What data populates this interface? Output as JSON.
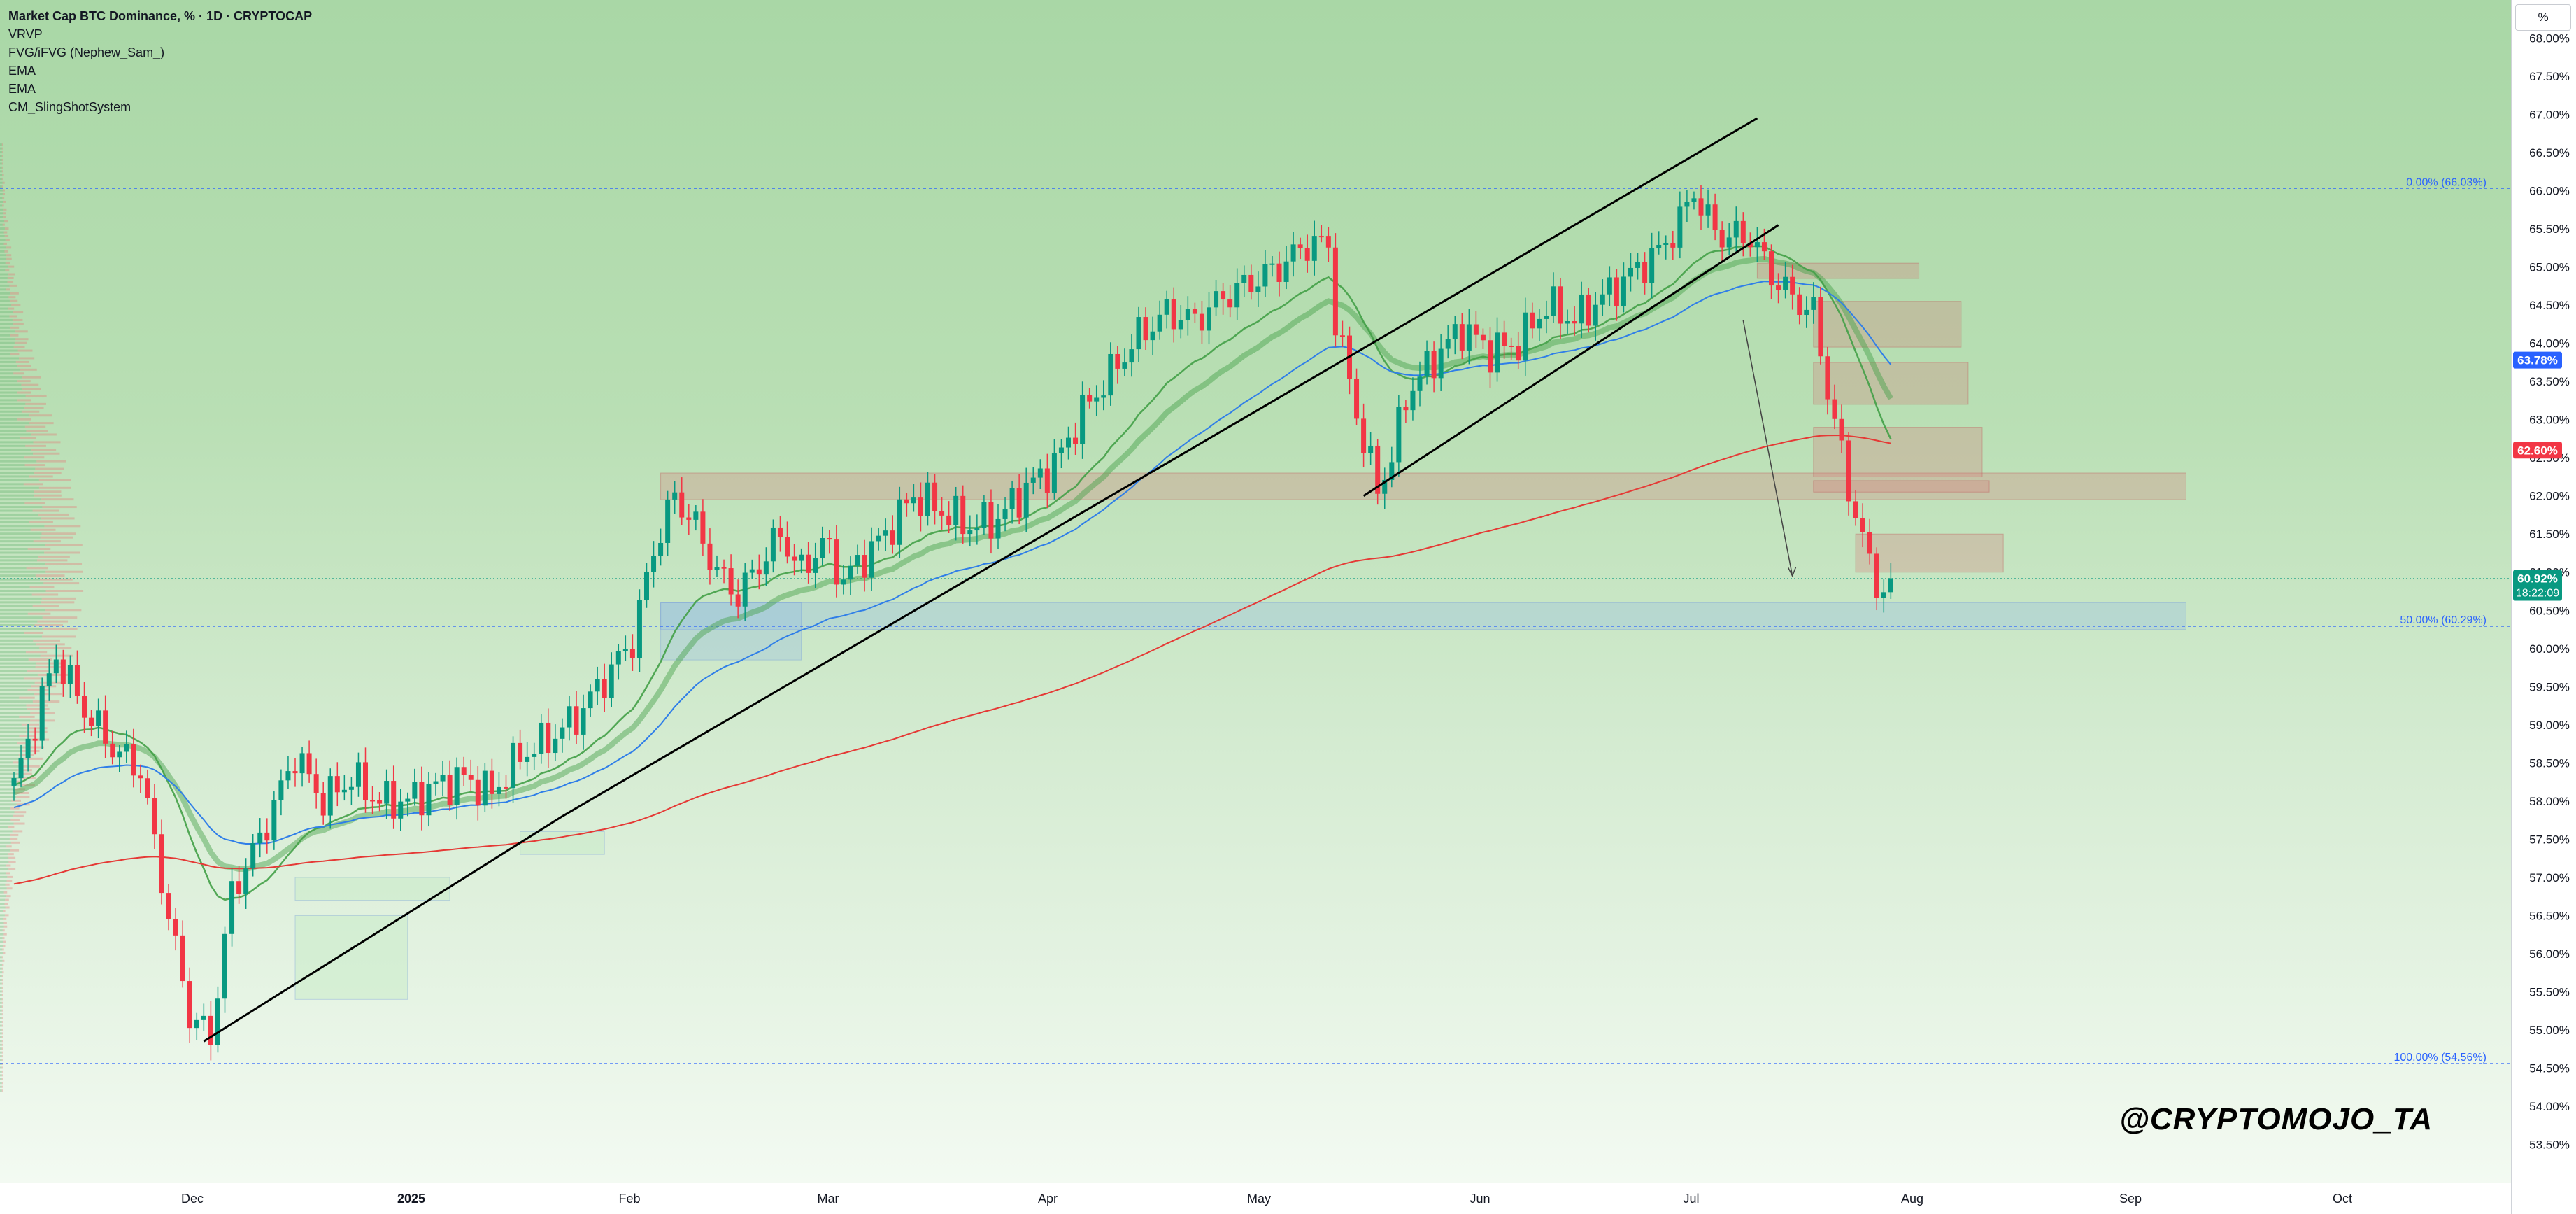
{
  "legend": {
    "title": "Market Cap BTC Dominance, % · 1D · CRYPTOCAP",
    "indicators": [
      "VRVP",
      "FVG/iFVG (Nephew_Sam_)",
      "EMA",
      "EMA",
      "CM_SlingShotSystem"
    ]
  },
  "watermark": "@CRYPTOMOJO_TA",
  "unit_label": "%",
  "colors": {
    "up": "#089981",
    "down": "#f23645",
    "ema_fast": "#43a047",
    "ema_mid": "#2f7ee8",
    "ema_slow": "#e53935",
    "fib_line": "#2962ff"
  },
  "chart_data": {
    "type": "candlestick",
    "title": "Market Cap BTC Dominance, % · 1D · CRYPTOCAP",
    "ylim": [
      53.0,
      68.5
    ],
    "y_ticks": [
      "68.00%",
      "67.50%",
      "67.00%",
      "66.50%",
      "66.00%",
      "65.50%",
      "65.00%",
      "64.50%",
      "64.00%",
      "63.50%",
      "63.00%",
      "62.50%",
      "62.00%",
      "61.50%",
      "61.00%",
      "60.50%",
      "60.00%",
      "59.50%",
      "59.00%",
      "58.50%",
      "58.00%",
      "57.50%",
      "57.00%",
      "56.50%",
      "56.00%",
      "55.50%",
      "55.00%",
      "54.50%",
      "54.00%",
      "53.50%"
    ],
    "x_ticks": [
      "Dec",
      "2025",
      "Feb",
      "Mar",
      "Apr",
      "May",
      "Jun",
      "Jul",
      "Aug",
      "Sep",
      "Oct"
    ],
    "price_labels": {
      "last": "60.92%",
      "countdown": "18:22:09",
      "ema_blue": "63.78%",
      "ema_red": "62.60%"
    },
    "fib_levels": [
      {
        "label": "0.00% (66.03%)",
        "value": 66.03
      },
      {
        "label": "50.00% (60.29%)",
        "value": 60.29
      },
      {
        "label": "100.00% (54.56%)",
        "value": 54.56
      }
    ],
    "anchors": [
      [
        0,
        58.2
      ],
      [
        6,
        59.9
      ],
      [
        10,
        59.2
      ],
      [
        14,
        58.7
      ],
      [
        18,
        58.4
      ],
      [
        22,
        56.5
      ],
      [
        25,
        55.2
      ],
      [
        28,
        54.9
      ],
      [
        31,
        56.8
      ],
      [
        35,
        57.5
      ],
      [
        40,
        58.6
      ],
      [
        44,
        58.0
      ],
      [
        48,
        58.3
      ],
      [
        52,
        58.0
      ],
      [
        56,
        58.0
      ],
      [
        60,
        58.2
      ],
      [
        64,
        58.3
      ],
      [
        68,
        58.1
      ],
      [
        72,
        58.6
      ],
      [
        76,
        58.8
      ],
      [
        80,
        59.1
      ],
      [
        84,
        59.6
      ],
      [
        88,
        60.1
      ],
      [
        91,
        61.3
      ],
      [
        94,
        62.0
      ],
      [
        97,
        61.6
      ],
      [
        100,
        61.0
      ],
      [
        103,
        60.7
      ],
      [
        106,
        61.1
      ],
      [
        109,
        61.5
      ],
      [
        112,
        61.0
      ],
      [
        115,
        61.4
      ],
      [
        118,
        60.9
      ],
      [
        121,
        61.2
      ],
      [
        124,
        61.5
      ],
      [
        128,
        62.0
      ],
      [
        132,
        61.8
      ],
      [
        136,
        61.6
      ],
      [
        140,
        61.7
      ],
      [
        144,
        62.1
      ],
      [
        148,
        62.4
      ],
      [
        152,
        63.1
      ],
      [
        156,
        63.6
      ],
      [
        160,
        64.1
      ],
      [
        164,
        64.4
      ],
      [
        168,
        64.3
      ],
      [
        172,
        64.6
      ],
      [
        176,
        64.8
      ],
      [
        180,
        65.0
      ],
      [
        184,
        65.3
      ],
      [
        187,
        65.3
      ],
      [
        188,
        64.3
      ],
      [
        190,
        63.5
      ],
      [
        192,
        62.7
      ],
      [
        194,
        62.1
      ],
      [
        196,
        62.5
      ],
      [
        198,
        63.3
      ],
      [
        202,
        63.8
      ],
      [
        206,
        64.2
      ],
      [
        210,
        63.9
      ],
      [
        214,
        64.0
      ],
      [
        218,
        64.5
      ],
      [
        222,
        64.3
      ],
      [
        226,
        64.6
      ],
      [
        230,
        64.9
      ],
      [
        234,
        65.2
      ],
      [
        237,
        65.6
      ],
      [
        239,
        66.0
      ],
      [
        241,
        65.6
      ],
      [
        243,
        65.4
      ],
      [
        247,
        65.4
      ],
      [
        250,
        64.9
      ],
      [
        253,
        64.6
      ],
      [
        256,
        64.4
      ],
      [
        258,
        63.4
      ],
      [
        261,
        62.1
      ],
      [
        264,
        61.1
      ],
      [
        266,
        60.7
      ],
      [
        267,
        60.92
      ]
    ],
    "trendlines": [
      {
        "from": [
          27,
          54.85
        ],
        "to": [
          78,
          57.8
        ]
      },
      {
        "from": [
          78,
          57.8
        ],
        "to": [
          248,
          66.95
        ]
      },
      {
        "from": [
          192,
          62.0
        ],
        "to": [
          251,
          65.55
        ]
      }
    ],
    "zones": [
      {
        "type": "supply",
        "x0": 92,
        "x1": 309,
        "y0": 61.95,
        "y1": 62.3
      },
      {
        "type": "demand",
        "x0": 92,
        "x1": 309,
        "y0": 60.25,
        "y1": 60.6
      },
      {
        "type": "demand",
        "x0": 92,
        "x1": 112,
        "y0": 59.85,
        "y1": 60.6
      },
      {
        "type": "demand",
        "x0": 40,
        "x1": 56,
        "y0": 55.4,
        "y1": 56.5
      },
      {
        "type": "demand",
        "x0": 40,
        "x1": 62,
        "y0": 56.7,
        "y1": 57.0
      },
      {
        "type": "demand",
        "x0": 72,
        "x1": 84,
        "y0": 57.3,
        "y1": 57.6
      },
      {
        "type": "supply",
        "x0": 256,
        "x1": 277,
        "y0": 63.95,
        "y1": 64.55
      },
      {
        "type": "supply",
        "x0": 256,
        "x1": 278,
        "y0": 63.2,
        "y1": 63.75
      },
      {
        "type": "supply",
        "x0": 256,
        "x1": 280,
        "y0": 62.25,
        "y1": 62.9
      },
      {
        "type": "supply",
        "x0": 256,
        "x1": 281,
        "y0": 62.05,
        "y1": 62.2
      },
      {
        "type": "supply",
        "x0": 262,
        "x1": 283,
        "y0": 61.0,
        "y1": 61.5
      },
      {
        "type": "supply",
        "x0": 248,
        "x1": 271,
        "y0": 64.85,
        "y1": 65.05
      }
    ]
  }
}
